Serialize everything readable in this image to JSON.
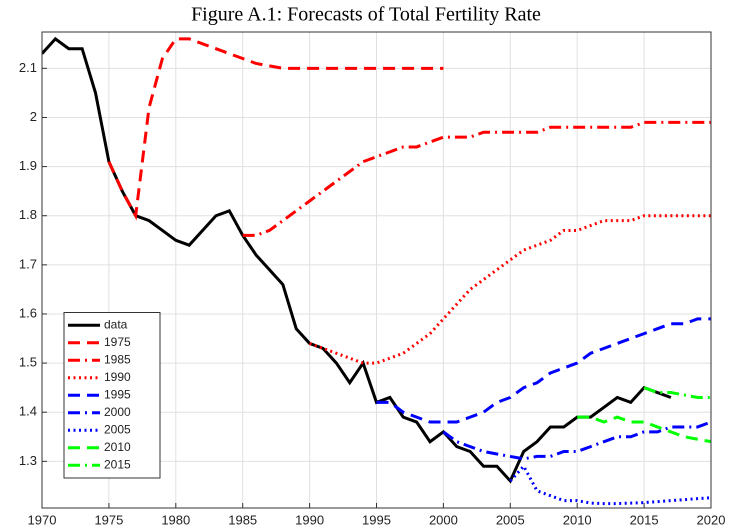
{
  "chart_data": {
    "type": "line",
    "title": "Figure A.1: Forecasts of Total Fertility Rate",
    "x": [
      1970,
      1971,
      1972,
      1973,
      1974,
      1975,
      1976,
      1977,
      1978,
      1979,
      1980,
      1981,
      1982,
      1983,
      1984,
      1985,
      1986,
      1987,
      1988,
      1989,
      1990,
      1991,
      1992,
      1993,
      1994,
      1995,
      1996,
      1997,
      1998,
      1999,
      2000,
      2001,
      2002,
      2003,
      2004,
      2005,
      2006,
      2007,
      2008,
      2009,
      2010,
      2011,
      2012,
      2013,
      2014,
      2015,
      2016,
      2017,
      2018,
      2019,
      2020
    ],
    "xlim": [
      1970,
      2020
    ],
    "xticks": [
      1970,
      1975,
      1980,
      1985,
      1990,
      1995,
      2000,
      2005,
      2010,
      2015,
      2020
    ],
    "ylim": [
      1.205,
      2.174
    ],
    "yticks": [
      1.3,
      1.4,
      1.5,
      1.6,
      1.7,
      1.8,
      1.9,
      2,
      2.1
    ],
    "grid": true,
    "legend": "lower left",
    "series": [
      {
        "name": "data",
        "color": "#000000",
        "style": "solid",
        "values": [
          2.13,
          2.16,
          2.14,
          2.14,
          2.05,
          1.91,
          1.85,
          1.8,
          1.79,
          1.77,
          1.75,
          1.74,
          1.77,
          1.8,
          1.81,
          1.76,
          1.72,
          1.69,
          1.66,
          1.57,
          1.54,
          1.53,
          1.5,
          1.46,
          1.5,
          1.42,
          1.43,
          1.39,
          1.38,
          1.34,
          1.36,
          1.33,
          1.32,
          1.29,
          1.29,
          1.26,
          1.32,
          1.34,
          1.37,
          1.37,
          1.39,
          1.39,
          1.41,
          1.43,
          1.42,
          1.45,
          1.44,
          1.43,
          null,
          null,
          null
        ]
      },
      {
        "name": "1975",
        "color": "#ff0000",
        "style": "dashed",
        "values": [
          null,
          null,
          null,
          null,
          null,
          1.91,
          1.85,
          1.8,
          2.02,
          2.12,
          2.16,
          2.16,
          2.15,
          2.14,
          2.13,
          2.12,
          2.11,
          2.105,
          2.1,
          2.1,
          2.1,
          2.1,
          2.1,
          2.1,
          2.1,
          2.1,
          2.1,
          2.1,
          2.1,
          2.1,
          2.1,
          null,
          null,
          null,
          null,
          null,
          null,
          null,
          null,
          null,
          null,
          null,
          null,
          null,
          null,
          null,
          null,
          null,
          null,
          null,
          null
        ]
      },
      {
        "name": "1985",
        "color": "#ff0000",
        "style": "dashdot",
        "values": [
          null,
          null,
          null,
          null,
          null,
          null,
          null,
          null,
          null,
          null,
          null,
          null,
          null,
          null,
          null,
          1.76,
          1.76,
          1.77,
          1.79,
          1.81,
          1.83,
          1.85,
          1.87,
          1.89,
          1.91,
          1.92,
          1.93,
          1.94,
          1.94,
          1.95,
          1.96,
          1.96,
          1.96,
          1.97,
          1.97,
          1.97,
          1.97,
          1.97,
          1.98,
          1.98,
          1.98,
          1.98,
          1.98,
          1.98,
          1.98,
          1.99,
          1.99,
          1.99,
          1.99,
          1.99,
          1.99
        ]
      },
      {
        "name": "1990",
        "color": "#ff0000",
        "style": "dotted",
        "values": [
          null,
          null,
          null,
          null,
          null,
          null,
          null,
          null,
          null,
          null,
          null,
          null,
          null,
          null,
          null,
          null,
          null,
          null,
          null,
          null,
          1.54,
          1.53,
          1.52,
          1.51,
          1.5,
          1.5,
          1.51,
          1.52,
          1.54,
          1.56,
          1.59,
          1.62,
          1.65,
          1.67,
          1.69,
          1.71,
          1.73,
          1.74,
          1.75,
          1.77,
          1.77,
          1.78,
          1.79,
          1.79,
          1.79,
          1.8,
          1.8,
          1.8,
          1.8,
          1.8,
          1.8
        ]
      },
      {
        "name": "1995",
        "color": "#0000ff",
        "style": "dashed",
        "values": [
          null,
          null,
          null,
          null,
          null,
          null,
          null,
          null,
          null,
          null,
          null,
          null,
          null,
          null,
          null,
          null,
          null,
          null,
          null,
          null,
          null,
          null,
          null,
          null,
          null,
          1.42,
          1.42,
          1.4,
          1.39,
          1.38,
          1.38,
          1.38,
          1.39,
          1.4,
          1.42,
          1.43,
          1.45,
          1.46,
          1.48,
          1.49,
          1.5,
          1.52,
          1.53,
          1.54,
          1.55,
          1.56,
          1.57,
          1.58,
          1.58,
          1.59,
          1.59
        ]
      },
      {
        "name": "2000",
        "color": "#0000ff",
        "style": "dashdot",
        "values": [
          null,
          null,
          null,
          null,
          null,
          null,
          null,
          null,
          null,
          null,
          null,
          null,
          null,
          null,
          null,
          null,
          null,
          null,
          null,
          null,
          null,
          null,
          null,
          null,
          null,
          null,
          null,
          null,
          null,
          null,
          1.36,
          1.34,
          1.33,
          1.32,
          1.315,
          1.31,
          1.305,
          1.31,
          1.31,
          1.32,
          1.32,
          1.33,
          1.34,
          1.35,
          1.35,
          1.36,
          1.36,
          1.37,
          1.37,
          1.37,
          1.38
        ]
      },
      {
        "name": "2005",
        "color": "#0000ff",
        "style": "dotted",
        "values": [
          null,
          null,
          null,
          null,
          null,
          null,
          null,
          null,
          null,
          null,
          null,
          null,
          null,
          null,
          null,
          null,
          null,
          null,
          null,
          null,
          null,
          null,
          null,
          null,
          null,
          null,
          null,
          null,
          null,
          null,
          null,
          null,
          null,
          null,
          null,
          1.26,
          1.29,
          1.24,
          1.23,
          1.22,
          1.22,
          1.215,
          1.214,
          1.214,
          1.215,
          1.216,
          1.218,
          1.22,
          1.222,
          1.224,
          1.226
        ]
      },
      {
        "name": "2010",
        "color": "#00ff00",
        "style": "dashed",
        "values": [
          null,
          null,
          null,
          null,
          null,
          null,
          null,
          null,
          null,
          null,
          null,
          null,
          null,
          null,
          null,
          null,
          null,
          null,
          null,
          null,
          null,
          null,
          null,
          null,
          null,
          null,
          null,
          null,
          null,
          null,
          null,
          null,
          null,
          null,
          null,
          null,
          null,
          null,
          null,
          null,
          1.39,
          1.39,
          1.38,
          1.39,
          1.38,
          1.38,
          1.37,
          1.36,
          1.35,
          1.345,
          1.34
        ]
      },
      {
        "name": "2015",
        "color": "#00ff00",
        "style": "dashdot",
        "values": [
          null,
          null,
          null,
          null,
          null,
          null,
          null,
          null,
          null,
          null,
          null,
          null,
          null,
          null,
          null,
          null,
          null,
          null,
          null,
          null,
          null,
          null,
          null,
          null,
          null,
          null,
          null,
          null,
          null,
          null,
          null,
          null,
          null,
          null,
          null,
          null,
          null,
          null,
          null,
          null,
          null,
          null,
          null,
          null,
          null,
          1.45,
          1.44,
          1.44,
          1.435,
          1.43,
          1.43
        ]
      }
    ]
  }
}
